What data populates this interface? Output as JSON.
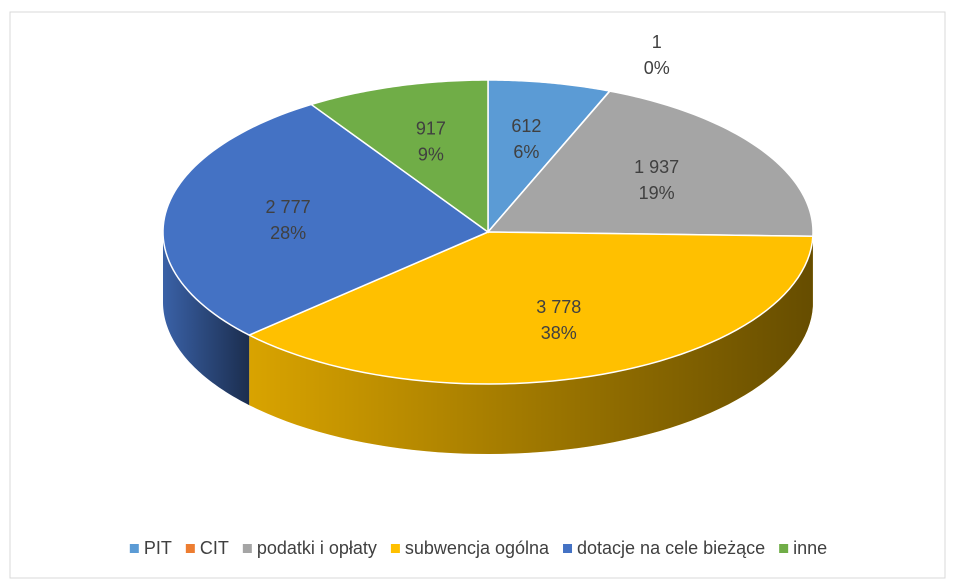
{
  "chart_data": {
    "type": "pie3d",
    "categories": [
      "PIT",
      "CIT",
      "podatki i opłaty",
      "subwencja ogólna",
      "dotacje na cele bieżące",
      "inne"
    ],
    "values": [
      612,
      1,
      1937,
      3778,
      2777,
      917
    ],
    "value_labels": [
      "612",
      "1",
      "1 937",
      "3 778",
      "2 777",
      "917"
    ],
    "percent_labels": [
      "6%",
      "0%",
      "19%",
      "38%",
      "28%",
      "9%"
    ],
    "colors": [
      "#5b9bd5",
      "#ed7d31",
      "#a5a5a5",
      "#ffc000",
      "#4472c4",
      "#70ad47"
    ],
    "legend": "bottom"
  }
}
